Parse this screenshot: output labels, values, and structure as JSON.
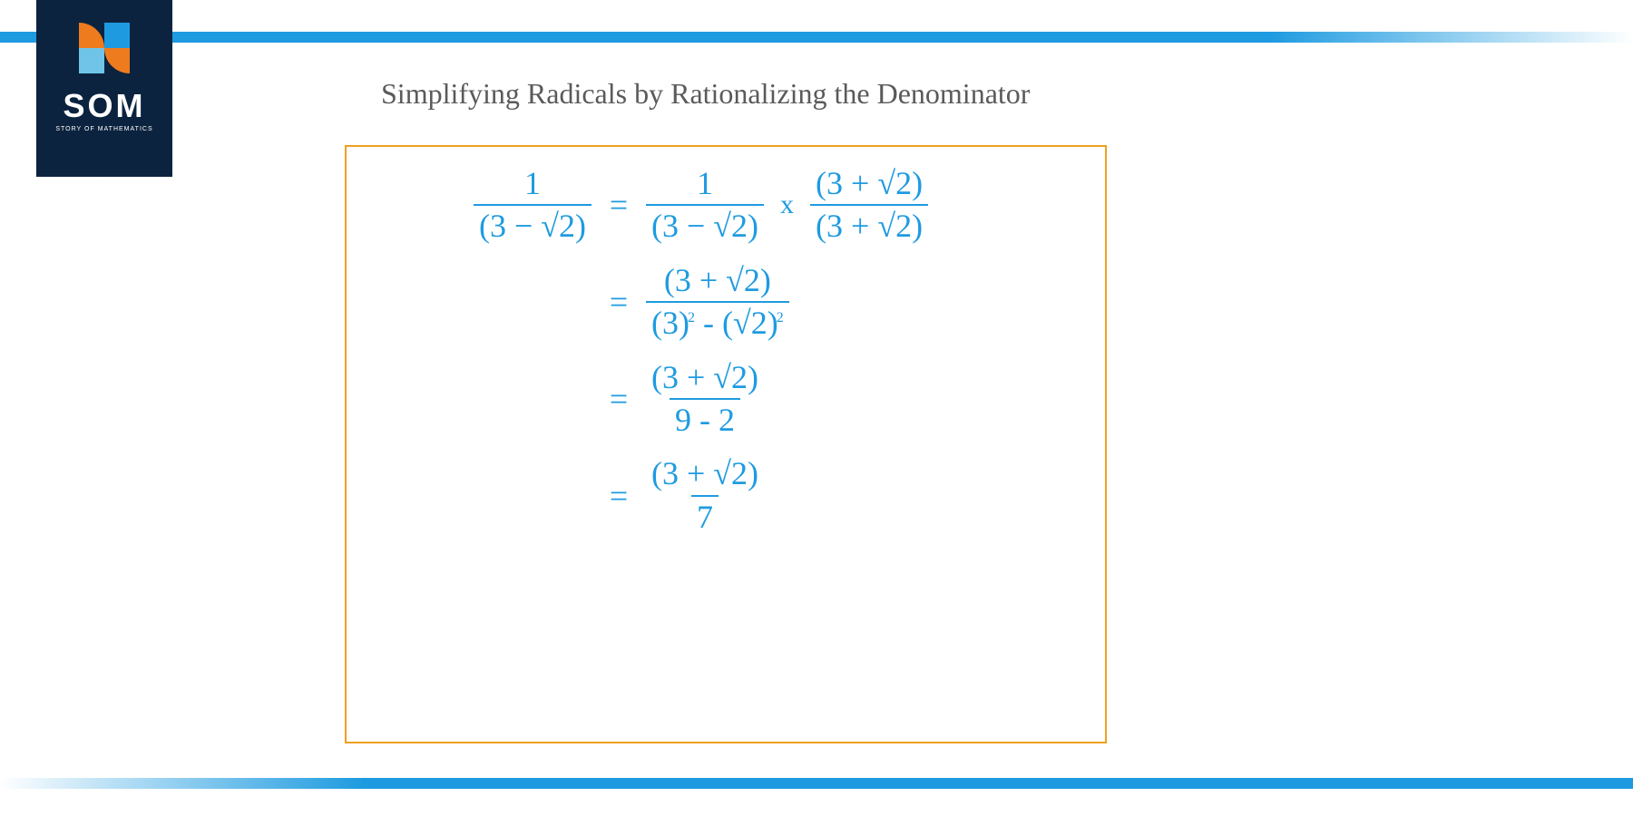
{
  "colors": {
    "brand_dark": "#0c2340",
    "brand_blue": "#1e9be0",
    "brand_orange": "#ee7b1e",
    "brand_lightblue": "#6fc4e8",
    "border_yellow": "#f0a020",
    "title_text": "#5a5a5a",
    "math_text": "#1e9be0",
    "bg": "#ffffff"
  },
  "logo": {
    "main": "SOM",
    "sub": "STORY OF MATHEMATICS"
  },
  "title": "Simplifying Radicals by Rationalizing the Denominator",
  "equation": {
    "lines": [
      {
        "lhs": {
          "num": "1",
          "den": "(3 − √2)"
        },
        "rhs": [
          {
            "type": "frac",
            "num": "1",
            "den": "(3 − √2)"
          },
          {
            "type": "op",
            "text": "x"
          },
          {
            "type": "frac",
            "num": "(3 + √2)",
            "den": "(3 + √2)"
          }
        ]
      },
      {
        "lhs": null,
        "rhs": [
          {
            "type": "frac",
            "num": "(3 + √2)",
            "den_html": "(3)<span class='sup'>2</span> - (√2)<span class='sup'>2</span>"
          }
        ]
      },
      {
        "lhs": null,
        "rhs": [
          {
            "type": "frac",
            "num": "(3 + √2)",
            "den": "9 - 2"
          }
        ]
      },
      {
        "lhs": null,
        "rhs": [
          {
            "type": "frac",
            "num": "(3 + √2)",
            "den": "7"
          }
        ]
      }
    ],
    "equals": "="
  },
  "bars": {
    "top_gradient": "linear-gradient(to right, #1e9be0, #ffffff)",
    "bottom_gradient": "linear-gradient(to right, #ffffff, #1e9be0)"
  }
}
